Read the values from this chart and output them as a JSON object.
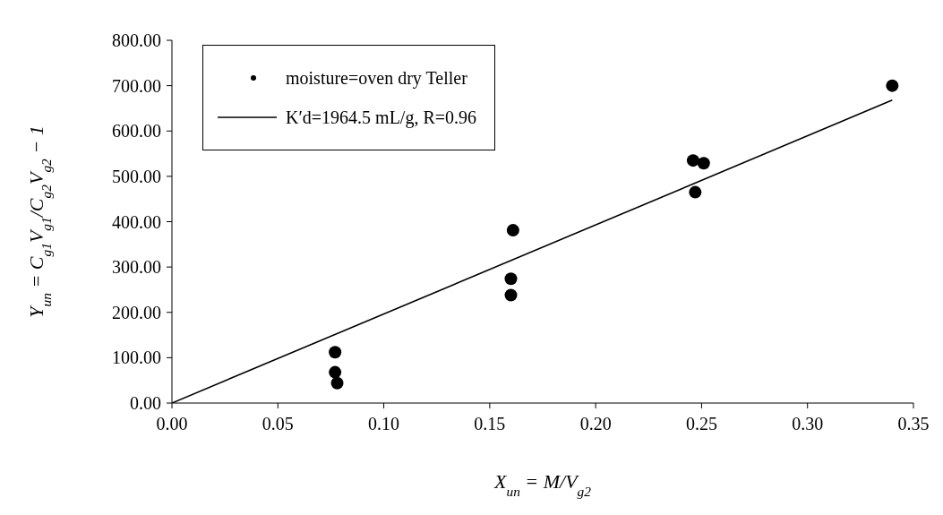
{
  "chart_data": {
    "type": "scatter",
    "xlabel": "X$_{un}$ = M/V$_{g2}$",
    "ylabel": "Y$_{un}$ = C$_{g1}$V$_{g1}$/C$_{g2}$V$_{g2}$ − 1",
    "xlim": [
      0,
      0.35
    ],
    "xticks": [
      {
        "value": 0,
        "label": "0.00"
      },
      {
        "value": 0.05,
        "label": "0.05"
      },
      {
        "value": 0.1,
        "label": "0.10"
      },
      {
        "value": 0.15,
        "label": "0.15"
      },
      {
        "value": 0.2,
        "label": "0.20"
      },
      {
        "value": 0.25,
        "label": "0.25"
      },
      {
        "value": 0.3,
        "label": "0.30"
      },
      {
        "value": 0.35,
        "label": "0.35"
      }
    ],
    "ylim": [
      0,
      800
    ],
    "yticks": [
      {
        "value": 0,
        "label": "0.00"
      },
      {
        "value": 100,
        "label": "100.00"
      },
      {
        "value": 200,
        "label": "200.00"
      },
      {
        "value": 300,
        "label": "300.00"
      },
      {
        "value": 400,
        "label": "400.00"
      },
      {
        "value": 500,
        "label": "500.00"
      },
      {
        "value": 600,
        "label": "600.00"
      },
      {
        "value": 700,
        "label": "700.00"
      },
      {
        "value": 800,
        "label": "800.00"
      }
    ],
    "grid": false,
    "legend": "top left",
    "series": [
      {
        "name": "moisture=oven dry Teller",
        "marker": "circle",
        "color": "#000000",
        "x": [
          0.077,
          0.077,
          0.078,
          0.161,
          0.16,
          0.16,
          0.246,
          0.251,
          0.247,
          0.34
        ],
        "values": [
          112,
          68,
          44,
          381,
          274,
          238,
          535,
          529,
          465,
          700
        ]
      },
      {
        "name": "K′d=1964.5 mL/g, R=0.96",
        "type": "line",
        "color": "#000000",
        "x": [
          0,
          0.34
        ],
        "values": [
          0,
          668
        ]
      }
    ]
  }
}
